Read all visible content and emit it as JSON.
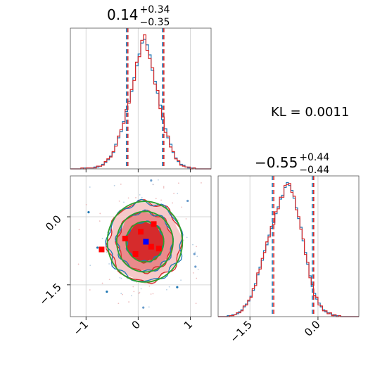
{
  "chart_data": {
    "type": "corner",
    "stat_text": "KL = 0.0011",
    "colors": {
      "series_a": "#1f77b4",
      "series_b": "#d62728",
      "reference": "#2ca02c",
      "truth_a": "#0000ff",
      "truth_b": "#ff0000",
      "grid": "#cccccc"
    },
    "parameters": [
      {
        "title_value": "0.14",
        "title_upper": "+0.34",
        "title_lower": "−0.35",
        "quantiles": [
          -0.21,
          0.48
        ],
        "xlim": [
          -1.3,
          1.4
        ],
        "tick_values": [
          -1,
          0,
          1
        ],
        "tick_labels": [
          "−1",
          "0",
          "1"
        ],
        "hist_bins": [
          -1.3,
          -1.25,
          -1.2,
          -1.15,
          -1.1,
          -1.05,
          -1.0,
          -0.95,
          -0.9,
          -0.85,
          -0.8,
          -0.75,
          -0.7,
          -0.65,
          -0.6,
          -0.55,
          -0.5,
          -0.45,
          -0.4,
          -0.35,
          -0.3,
          -0.25,
          -0.2,
          -0.15,
          -0.1,
          -0.05,
          0.0,
          0.05,
          0.1,
          0.15,
          0.2,
          0.25,
          0.3,
          0.35,
          0.4,
          0.45,
          0.5,
          0.55,
          0.6,
          0.65,
          0.7,
          0.75,
          0.8,
          0.85,
          0.9,
          0.95,
          1.0,
          1.05,
          1.1,
          1.15,
          1.2,
          1.25,
          1.3,
          1.35,
          1.4
        ],
        "hist_a": [
          0,
          0,
          0,
          0,
          0,
          1,
          1,
          1,
          1,
          2,
          2,
          3,
          5,
          7,
          10,
          14,
          18,
          27,
          34,
          41,
          52,
          63,
          74,
          85,
          100,
          113,
          126,
          138,
          142,
          136,
          125,
          108,
          96,
          83,
          70,
          54,
          44,
          34,
          27,
          18,
          12,
          8,
          5,
          4,
          2,
          1,
          1,
          1,
          0,
          0,
          0,
          0,
          0,
          0
        ],
        "hist_b": [
          0,
          0,
          0,
          0,
          1,
          0,
          1,
          1,
          1,
          1,
          3,
          3,
          4,
          8,
          11,
          13,
          19,
          25,
          36,
          43,
          50,
          65,
          72,
          87,
          97,
          117,
          123,
          141,
          147,
          130,
          121,
          111,
          93,
          86,
          66,
          57,
          40,
          36,
          24,
          19,
          11,
          9,
          4,
          3,
          2,
          2,
          0,
          1,
          0,
          0,
          0,
          0,
          0,
          0
        ]
      },
      {
        "title_value": "−0.55",
        "title_upper": "+0.44",
        "title_lower": "−0.44",
        "quantiles": [
          -0.99,
          -0.11
        ],
        "xlim": [
          -2.2,
          0.9
        ],
        "tick_values": [
          -1.5,
          0.0
        ],
        "tick_labels": [
          "−1.5",
          "0.0"
        ],
        "hist_bins": [
          -2.2,
          -2.15,
          -2.1,
          -2.05,
          -2.0,
          -1.95,
          -1.9,
          -1.85,
          -1.8,
          -1.75,
          -1.7,
          -1.65,
          -1.6,
          -1.55,
          -1.5,
          -1.45,
          -1.4,
          -1.35,
          -1.3,
          -1.25,
          -1.2,
          -1.15,
          -1.1,
          -1.05,
          -1.0,
          -0.95,
          -0.9,
          -0.85,
          -0.8,
          -0.75,
          -0.7,
          -0.65,
          -0.6,
          -0.55,
          -0.5,
          -0.45,
          -0.4,
          -0.35,
          -0.3,
          -0.25,
          -0.2,
          -0.15,
          -0.1,
          -0.05,
          0.0,
          0.05,
          0.1,
          0.15,
          0.2,
          0.25,
          0.3,
          0.35,
          0.4,
          0.45,
          0.5,
          0.55,
          0.6,
          0.65,
          0.7,
          0.75,
          0.8,
          0.85,
          0.9
        ],
        "hist_a": [
          0,
          0,
          0,
          0,
          1,
          1,
          2,
          2,
          3,
          5,
          7,
          10,
          13,
          16,
          21,
          27,
          34,
          43,
          51,
          58,
          68,
          74,
          84,
          91,
          97,
          106,
          113,
          121,
          125,
          133,
          138,
          135,
          130,
          122,
          112,
          101,
          92,
          78,
          66,
          54,
          42,
          31,
          24,
          18,
          14,
          10,
          7,
          5,
          4,
          3,
          2,
          1,
          1,
          1,
          0,
          0,
          0,
          0,
          0,
          0,
          0,
          0
        ],
        "hist_b": [
          0,
          0,
          0,
          0,
          0,
          1,
          1,
          2,
          4,
          4,
          6,
          11,
          12,
          17,
          20,
          29,
          32,
          45,
          49,
          60,
          66,
          77,
          82,
          93,
          95,
          108,
          111,
          123,
          123,
          135,
          136,
          137,
          128,
          124,
          110,
          103,
          90,
          80,
          64,
          56,
          40,
          33,
          22,
          20,
          12,
          11,
          6,
          6,
          3,
          4,
          1,
          2,
          0,
          1,
          0,
          0,
          0,
          0,
          0,
          0,
          0,
          0
        ]
      }
    ],
    "joint": {
      "xlim": [
        -1.3,
        1.4
      ],
      "ylim": [
        -2.2,
        0.9
      ],
      "x_tick_values": [
        -1,
        0,
        1
      ],
      "x_tick_labels": [
        "−1",
        "0",
        "1"
      ],
      "y_tick_values": [
        0.0,
        -1.5
      ],
      "y_tick_labels": [
        "0.0",
        "−1.5"
      ],
      "center": [
        0.13,
        -0.55
      ],
      "sigma": [
        0.35,
        0.44
      ],
      "contour_levels_sigma": [
        1.0,
        1.5,
        2.0
      ],
      "truth_a": [
        [
          0.15,
          -0.55
        ]
      ],
      "truth_b": [
        [
          -0.7,
          -0.72
        ],
        [
          -0.25,
          -0.48
        ],
        [
          0.05,
          -0.33
        ],
        [
          0.25,
          -0.66
        ],
        [
          0.3,
          -0.16
        ],
        [
          -0.05,
          -0.82
        ],
        [
          0.4,
          -0.7
        ]
      ],
      "outliers": [
        [
          0.25,
          0.8
        ],
        [
          0.75,
          -1.55
        ],
        [
          1.08,
          -0.82
        ],
        [
          -0.78,
          -0.68
        ],
        [
          0.1,
          -2.0
        ],
        [
          -0.95,
          0.1
        ],
        [
          0.95,
          0.35
        ],
        [
          -0.6,
          -1.65
        ],
        [
          1.1,
          -1.1
        ]
      ]
    }
  }
}
